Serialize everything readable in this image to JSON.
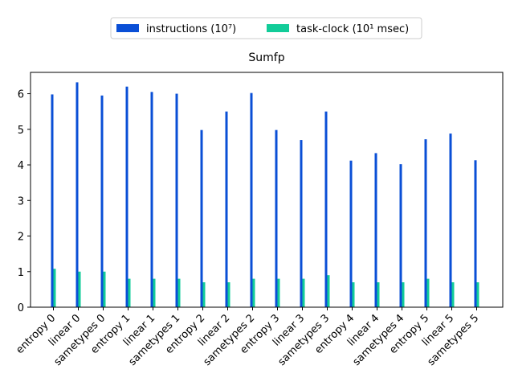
{
  "chart_data": {
    "type": "bar",
    "title": "Sumfp",
    "xlabel": "",
    "ylabel": "",
    "ylim": [
      0,
      6.6
    ],
    "yticks": [
      0,
      1,
      2,
      3,
      4,
      5,
      6
    ],
    "grid": false,
    "legend_position": "top-center",
    "categories": [
      "entropy 0",
      "linear 0",
      "sametypes 0",
      "entropy 1",
      "linear 1",
      "sametypes 1",
      "entropy 2",
      "linear 2",
      "sametypes 2",
      "entropy 3",
      "linear 3",
      "sametypes 3",
      "entropy 4",
      "linear 4",
      "sametypes 4",
      "entropy 5",
      "linear 5",
      "sametypes 5"
    ],
    "series": [
      {
        "name": "instructions (10⁷)",
        "color": "#0a4fd6",
        "values": [
          5.98,
          6.32,
          5.95,
          6.2,
          6.05,
          6.0,
          4.98,
          5.5,
          6.02,
          4.98,
          4.7,
          5.5,
          4.12,
          4.33,
          4.02,
          4.72,
          4.88,
          4.13
        ]
      },
      {
        "name": "task-clock (10¹ msec)",
        "color": "#12cc99",
        "values": [
          1.08,
          1.0,
          1.0,
          0.8,
          0.8,
          0.8,
          0.7,
          0.7,
          0.8,
          0.8,
          0.8,
          0.9,
          0.7,
          0.7,
          0.7,
          0.8,
          0.7,
          0.7
        ]
      }
    ]
  }
}
